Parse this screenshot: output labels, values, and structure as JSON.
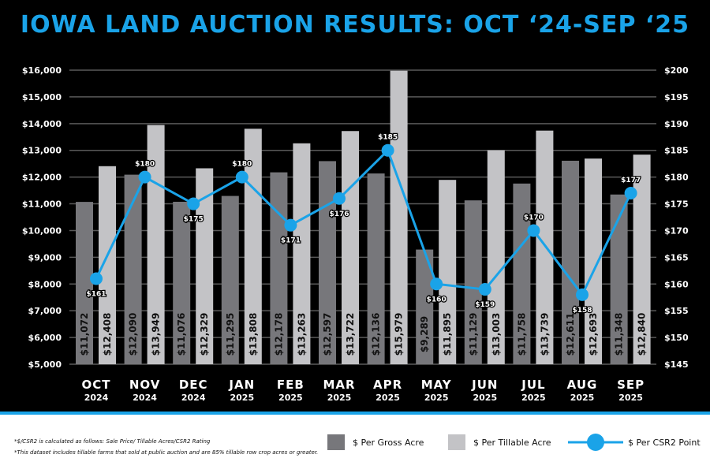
{
  "title": "IOWA LAND AUCTION RESULTS: OCT ‘24-SEP ‘25",
  "notes": [
    "*$/CSR2 is calculated as follows: Sale Price/ Tillable Acres/CSR2 Rating",
    "*This dataset includes tillable farms that sold at public auction and are 85% tillable row crop acres or greater."
  ],
  "legend": {
    "gross": "$ Per Gross Acre",
    "tillable": "$ Per Tillable Acre",
    "csr2": "$ Per CSR2 Point"
  },
  "colors": {
    "accent": "#1aa3e8",
    "gross": "#77777b",
    "tillable": "#c3c3c6",
    "bg": "#000000"
  },
  "chart_data": {
    "type": "bar",
    "title": "IOWA LAND AUCTION RESULTS: OCT ‘24-SEP ‘25",
    "categories": [
      [
        "OCT",
        "2024"
      ],
      [
        "NOV",
        "2024"
      ],
      [
        "DEC",
        "2024"
      ],
      [
        "JAN",
        "2025"
      ],
      [
        "FEB",
        "2025"
      ],
      [
        "MAR",
        "2025"
      ],
      [
        "APR",
        "2025"
      ],
      [
        "MAY",
        "2025"
      ],
      [
        "JUN",
        "2025"
      ],
      [
        "JUL",
        "2025"
      ],
      [
        "AUG",
        "2025"
      ],
      [
        "SEP",
        "2025"
      ]
    ],
    "series": [
      {
        "name": "$ Per Gross Acre",
        "axis": "left",
        "values": [
          11072,
          12090,
          11076,
          11295,
          12178,
          12597,
          12136,
          9289,
          11129,
          11758,
          12611,
          11348
        ],
        "labels": [
          "$11,072",
          "$12,090",
          "$11,076",
          "$11,295",
          "$12,178",
          "$12,597",
          "$12,136",
          "$9,289",
          "$11,129",
          "$11,758",
          "$12,611",
          "$11,348"
        ]
      },
      {
        "name": "$ Per Tillable Acre",
        "axis": "left",
        "values": [
          12408,
          13949,
          12329,
          13808,
          13263,
          13722,
          15979,
          11895,
          13003,
          13739,
          12693,
          12840
        ],
        "labels": [
          "$12,408",
          "$13,949",
          "$12,329",
          "$13,808",
          "$13,263",
          "$13,722",
          "$15,979",
          "$11,895",
          "$13,003",
          "$13,739",
          "$12,693",
          "$12,840"
        ]
      },
      {
        "name": "$ Per CSR2 Point",
        "type": "line",
        "axis": "right",
        "values": [
          161,
          180,
          175,
          180,
          171,
          176,
          185,
          160,
          159,
          170,
          158,
          177
        ],
        "labels": [
          "$161",
          "$180",
          "$175",
          "$180",
          "$171",
          "$176",
          "$185",
          "$160",
          "$159",
          "$170",
          "$158",
          "$177"
        ],
        "label_pos": [
          "below",
          "above",
          "below",
          "above",
          "below",
          "below",
          "above",
          "below",
          "below",
          "above",
          "below",
          "above"
        ]
      }
    ],
    "yleft": {
      "lim": [
        5000,
        16000
      ],
      "ticks": [
        "$5,000",
        "$6,000",
        "$7,000",
        "$8,000",
        "$9,000",
        "$10,000",
        "$11,000",
        "$12,000",
        "$13,000",
        "$14,000",
        "$15,000",
        "$16,000"
      ]
    },
    "yright": {
      "lim": [
        145,
        200
      ],
      "ticks": [
        "$145",
        "$150",
        "$155",
        "$160",
        "$165",
        "$170",
        "$175",
        "$180",
        "$185",
        "$190",
        "$195",
        "$200"
      ]
    },
    "grid": true
  }
}
